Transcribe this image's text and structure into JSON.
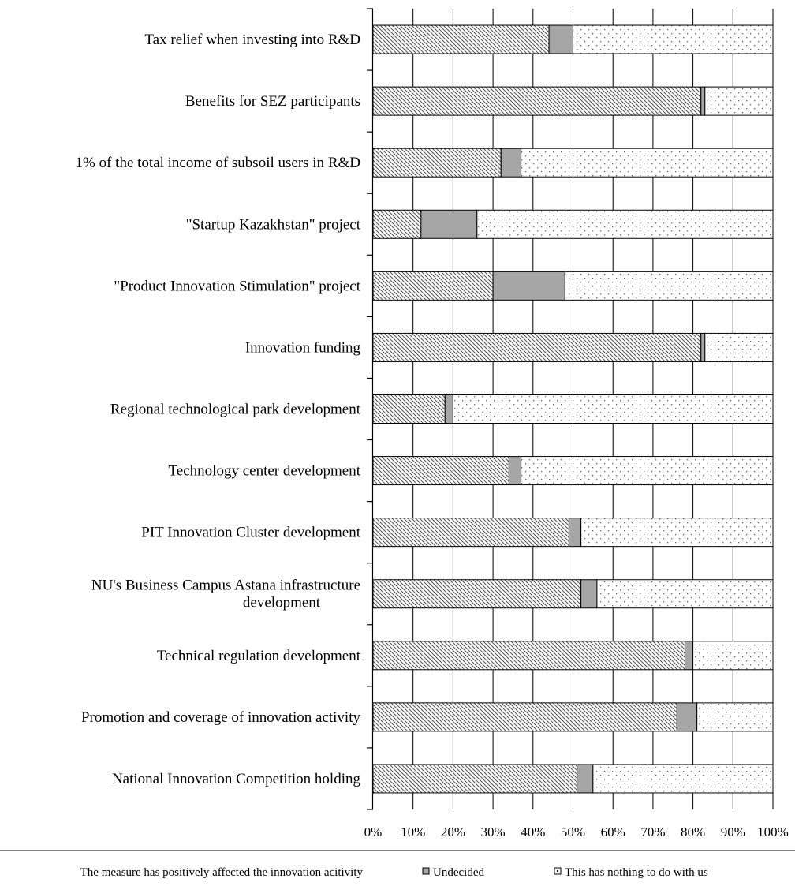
{
  "chart_data": {
    "type": "bar",
    "orientation": "horizontal",
    "stacked": true,
    "percent_scale": true,
    "grid": true,
    "legend_position": "bottom",
    "xlim": [
      0,
      100
    ],
    "categories": [
      [
        "Tax relief when investing into R&D"
      ],
      [
        "Benefits for SEZ participants"
      ],
      [
        "1% of the total income of subsoil users in R&D"
      ],
      [
        "\"Startup Kazakhstan\" project"
      ],
      [
        "\"Product Innovation Stimulation\" project"
      ],
      [
        "Innovation funding"
      ],
      [
        "Regional technological park development"
      ],
      [
        "Technology center development"
      ],
      [
        "PIT Innovation Cluster development"
      ],
      [
        "NU's Business Campus Astana infrastructure",
        "development"
      ],
      [
        "Technical regulation development"
      ],
      [
        "Promotion and coverage of innovation activity"
      ],
      [
        "National Innovation Competition holding"
      ]
    ],
    "series": [
      {
        "name": "The measure has positively affected the innovation acitivity",
        "pattern": "diagonal-hatch",
        "values": [
          44,
          82,
          32,
          12,
          30,
          82,
          18,
          34,
          49,
          52,
          78,
          76,
          51
        ]
      },
      {
        "name": "Undecided",
        "pattern": "solid-gray",
        "values": [
          6,
          1,
          5,
          14,
          18,
          1,
          2,
          3,
          3,
          4,
          2,
          5,
          4
        ]
      },
      {
        "name": "This has nothing to do with us",
        "pattern": "dotted",
        "values": [
          50,
          17,
          63,
          74,
          52,
          17,
          80,
          63,
          48,
          44,
          20,
          19,
          45
        ]
      }
    ],
    "x_ticks": [
      "0%",
      "10%",
      "20%",
      "30%",
      "40%",
      "50%",
      "60%",
      "70%",
      "80%",
      "90%",
      "100%"
    ],
    "colors": {
      "hatch": "#555555",
      "undecided": "#a6a6a6",
      "dot": "#666666",
      "outline": "#000000"
    }
  }
}
